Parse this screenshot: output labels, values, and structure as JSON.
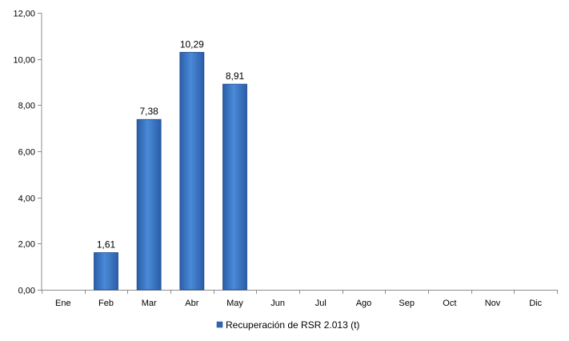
{
  "chart_data": {
    "type": "bar",
    "categories": [
      "Ene",
      "Feb",
      "Mar",
      "Abr",
      "May",
      "Jun",
      "Jul",
      "Ago",
      "Sep",
      "Oct",
      "Nov",
      "Dic"
    ],
    "series": [
      {
        "name": "Recuperación de RSR 2.013 (t)",
        "values": [
          null,
          1.61,
          7.38,
          10.29,
          8.91,
          null,
          null,
          null,
          null,
          null,
          null,
          null
        ],
        "data_labels": [
          "",
          "1,61",
          "7,38",
          "10,29",
          "8,91",
          "",
          "",
          "",
          "",
          "",
          "",
          ""
        ],
        "color": "#3a75c4"
      }
    ],
    "ylim": [
      0,
      12
    ],
    "y_ticks": [
      0,
      2,
      4,
      6,
      8,
      10,
      12
    ],
    "y_tick_labels": [
      "0,00",
      "2,00",
      "4,00",
      "6,00",
      "8,00",
      "10,00",
      "12,00"
    ],
    "grid": false,
    "legend_position": "bottom"
  }
}
